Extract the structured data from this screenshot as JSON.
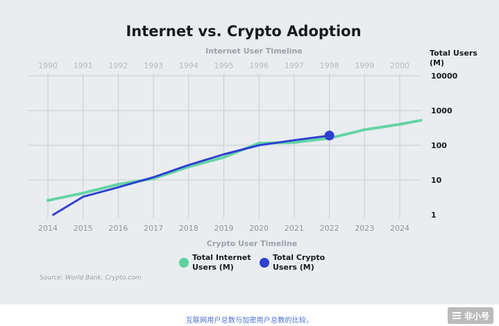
{
  "chart_data": {
    "type": "line",
    "title": "Internet vs. Crypto Adoption",
    "top_axis_title": "Internet User Timeline",
    "bottom_axis_title": "Crypto User Timeline",
    "y_axis_title": "Total Users (M)",
    "y_scale": "log",
    "ylim": [
      1,
      10000
    ],
    "y_ticks": [
      {
        "value": 1,
        "label": "1"
      },
      {
        "value": 10,
        "label": "10"
      },
      {
        "value": 100,
        "label": "100"
      },
      {
        "value": 1000,
        "label": "1000"
      },
      {
        "value": 10000,
        "label": "10000"
      }
    ],
    "top_years": [
      "1990",
      "1991",
      "1992",
      "1993",
      "1994",
      "1995",
      "1996",
      "1997",
      "1998",
      "1999",
      "2000"
    ],
    "bottom_years": [
      "2014",
      "2015",
      "2016",
      "2017",
      "2018",
      "2019",
      "2020",
      "2021",
      "2022",
      "2023",
      "2024"
    ],
    "series": [
      {
        "name": "Total Internet Users (M)",
        "color": "#5dd39e",
        "points": [
          {
            "x": 0,
            "y": 2.6
          },
          {
            "x": 1,
            "y": 4.2
          },
          {
            "x": 2,
            "y": 7.5
          },
          {
            "x": 3,
            "y": 11
          },
          {
            "x": 4,
            "y": 24
          },
          {
            "x": 5,
            "y": 45
          },
          {
            "x": 6,
            "y": 115
          },
          {
            "x": 7,
            "y": 120
          },
          {
            "x": 8,
            "y": 160
          },
          {
            "x": 9,
            "y": 280
          },
          {
            "x": 10,
            "y": 400
          },
          {
            "x": 10.6,
            "y": 520
          }
        ]
      },
      {
        "name": "Total Crypto Users (M)",
        "color": "#2f3fd1",
        "points": [
          {
            "x": 0.15,
            "y": 1.0
          },
          {
            "x": 1,
            "y": 3.3
          },
          {
            "x": 2,
            "y": 6.2
          },
          {
            "x": 3,
            "y": 12
          },
          {
            "x": 4,
            "y": 27
          },
          {
            "x": 5,
            "y": 55
          },
          {
            "x": 6,
            "y": 100
          },
          {
            "x": 7,
            "y": 140
          },
          {
            "x": 8,
            "y": 190
          }
        ],
        "end_marker": {
          "x": 8,
          "y": 190
        }
      }
    ],
    "legend": [
      {
        "line1": "Total Internet",
        "line2": "Users (M)",
        "color": "#5dd39e"
      },
      {
        "line1": "Total Crypto",
        "line2": "Users (M)",
        "color": "#2f3fd1"
      }
    ],
    "source_label": "Source:",
    "source_text": "World Bank, Crypto.com",
    "y_axis_title_line1": "Total Users",
    "y_axis_title_line2": "(M)"
  },
  "caption": "互联网用户总数与加密用户总数的比较。",
  "watermark": "非小号"
}
